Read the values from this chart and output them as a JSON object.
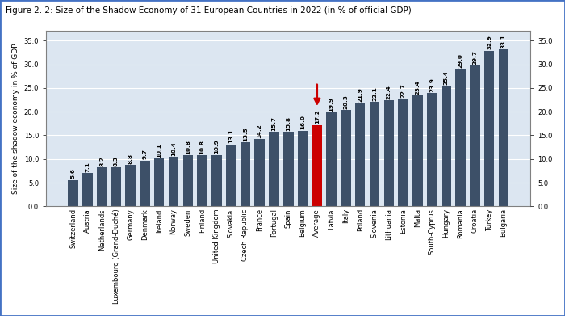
{
  "title": "Figure 2. 2: Size of the Shadow Economy of 31 European Countries in 2022 (in % of official GDP)",
  "ylabel": "Size of the shadow economy in % of GDP",
  "categories": [
    "Switzerland",
    "Austria",
    "Netherlands",
    "Luxembourg (Grand-Duché)",
    "Germany",
    "Denmark",
    "Ireland",
    "Norway",
    "Sweden",
    "Finland",
    "United Kingdom",
    "Slovakia",
    "Czech Republic",
    "France",
    "Portugal",
    "Spain",
    "Belgium",
    "Average",
    "Latvia",
    "Italy",
    "Poland",
    "Slovenia",
    "Lithuania",
    "Estonia",
    "Malta",
    "South-Cyprus",
    "Hungary",
    "Romania",
    "Croatia",
    "Turkey",
    "Bulgaria"
  ],
  "values": [
    5.6,
    7.1,
    8.2,
    8.3,
    8.8,
    9.7,
    10.1,
    10.4,
    10.8,
    10.8,
    10.9,
    13.1,
    13.5,
    14.2,
    15.7,
    15.8,
    16.0,
    17.2,
    19.9,
    20.3,
    21.9,
    22.1,
    22.4,
    22.7,
    23.4,
    23.9,
    25.4,
    29.0,
    29.7,
    32.9,
    33.1
  ],
  "bar_color": "#3d5068",
  "avg_bar_color": "#cc0000",
  "avg_index": 17,
  "ylim": [
    0,
    37
  ],
  "yticks": [
    0.0,
    5.0,
    10.0,
    15.0,
    20.0,
    25.0,
    30.0,
    35.0
  ],
  "title_fontsize": 7.5,
  "label_fontsize": 6.5,
  "tick_fontsize": 6.0,
  "value_fontsize": 5.2,
  "arrow_color": "#cc0000",
  "plot_bg_color": "#dce6f1",
  "fig_bg_color": "#ffffff",
  "border_color": "#4472c4"
}
